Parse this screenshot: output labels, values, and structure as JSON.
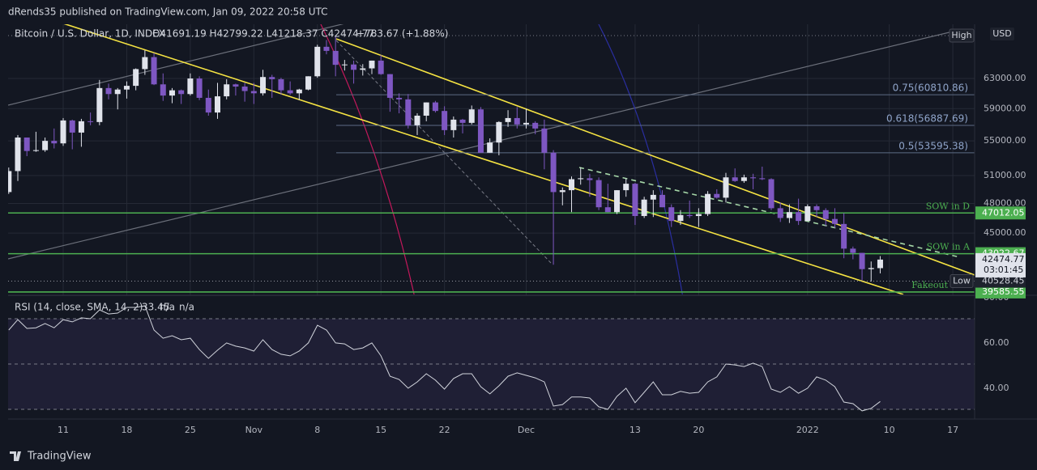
{
  "header": "dRends35 published on TradingView.com, Jan 09, 2022 20:58 UTC",
  "footer": "TradingView",
  "chart_data": {
    "type": "candlestick",
    "legend": {
      "name": "Bitcoin / U.S. Dollar, 1D, INDEX",
      "values": "O41691.19 H42799.22 L41218.37 C42474.77",
      "change": "+783.67 (+1.88%)"
    },
    "currency": "USD",
    "up_color": "#e0e3eb",
    "down_color": "#7e57c2",
    "log_scale": true,
    "grid": true,
    "xlim": [
      -0.07,
      106.4
    ],
    "xticks": [
      {
        "value": 6,
        "label": "11"
      },
      {
        "value": 13,
        "label": "18"
      },
      {
        "value": 20,
        "label": "25"
      },
      {
        "value": 27,
        "label": "Nov"
      },
      {
        "value": 34,
        "label": "8"
      },
      {
        "value": 41,
        "label": "15"
      },
      {
        "value": 48,
        "label": "22"
      },
      {
        "value": 57,
        "label": "Dec"
      },
      {
        "value": 69,
        "label": "13"
      },
      {
        "value": 76,
        "label": "20"
      },
      {
        "value": 88,
        "label": "2022"
      },
      {
        "value": 97,
        "label": "10"
      },
      {
        "value": 104,
        "label": "17"
      }
    ],
    "ylim": [
      39370,
      70890
    ],
    "yticks": [
      {
        "value": 45000,
        "label": "45000.00"
      },
      {
        "value": 48000,
        "label": "48000.00"
      },
      {
        "value": 51000,
        "label": "51000.00"
      },
      {
        "value": 55000,
        "label": "55000.00"
      },
      {
        "value": 59000,
        "label": "59000.00"
      },
      {
        "value": 63000,
        "label": "63000.00"
      }
    ],
    "ohlc": [
      [
        49200,
        51900,
        49000,
        51500
      ],
      [
        51500,
        55700,
        50400,
        55400
      ],
      [
        55400,
        55400,
        53200,
        53800
      ],
      [
        53800,
        56100,
        53700,
        53900
      ],
      [
        53900,
        55400,
        53700,
        55000
      ],
      [
        55000,
        56500,
        54100,
        54700
      ],
      [
        54700,
        57800,
        54400,
        57500
      ],
      [
        57500,
        57600,
        54000,
        56000
      ],
      [
        56000,
        57700,
        54300,
        57400
      ],
      [
        57400,
        58500,
        56900,
        57300
      ],
      [
        57300,
        62800,
        56900,
        61700
      ],
      [
        61700,
        62300,
        60200,
        60900
      ],
      [
        60900,
        61700,
        58900,
        61500
      ],
      [
        61500,
        62600,
        60300,
        62000
      ],
      [
        62000,
        64400,
        61400,
        64300
      ],
      [
        64300,
        67000,
        63500,
        66000
      ],
      [
        66000,
        66600,
        62100,
        62200
      ],
      [
        62200,
        63700,
        60000,
        60700
      ],
      [
        60700,
        61700,
        59700,
        61400
      ],
      [
        61400,
        61500,
        59600,
        60900
      ],
      [
        60900,
        63700,
        60700,
        63000
      ],
      [
        63000,
        63300,
        60100,
        60400
      ],
      [
        60400,
        61500,
        58100,
        58500
      ],
      [
        58500,
        62400,
        57700,
        60600
      ],
      [
        60600,
        62900,
        60200,
        62200
      ],
      [
        62200,
        62300,
        60700,
        61900
      ],
      [
        61900,
        62400,
        59900,
        61300
      ],
      [
        61300,
        62400,
        59600,
        61000
      ],
      [
        61000,
        64200,
        60700,
        63200
      ],
      [
        63200,
        63500,
        60400,
        62900
      ],
      [
        62900,
        63100,
        60800,
        61400
      ],
      [
        61400,
        62600,
        60800,
        61000
      ],
      [
        61000,
        61600,
        60100,
        61500
      ],
      [
        61500,
        63300,
        61400,
        63300
      ],
      [
        63300,
        67800,
        63100,
        67500
      ],
      [
        67500,
        68500,
        66400,
        66900
      ],
      [
        66900,
        69000,
        63300,
        64900
      ],
      [
        64900,
        65600,
        64100,
        64950
      ],
      [
        64950,
        65500,
        62300,
        64200
      ],
      [
        64200,
        65000,
        63400,
        64400
      ],
      [
        64400,
        65500,
        63600,
        65500
      ],
      [
        65500,
        66300,
        63500,
        63600
      ],
      [
        63600,
        63600,
        58600,
        60400
      ],
      [
        60400,
        61000,
        58400,
        60200
      ],
      [
        60200,
        60900,
        56500,
        56900
      ],
      [
        56900,
        58400,
        55700,
        58100
      ],
      [
        58100,
        59800,
        57400,
        59800
      ],
      [
        59800,
        60000,
        58500,
        58700
      ],
      [
        58700,
        59300,
        55700,
        56300
      ],
      [
        56300,
        58000,
        55400,
        57600
      ],
      [
        57600,
        57700,
        55900,
        57200
      ],
      [
        57200,
        59400,
        57000,
        58900
      ],
      [
        58900,
        59200,
        53600,
        53600
      ],
      [
        53600,
        55300,
        53600,
        54800
      ],
      [
        54800,
        57400,
        53300,
        57300
      ],
      [
        57300,
        58800,
        56700,
        57800
      ],
      [
        57800,
        59200,
        56500,
        57000
      ],
      [
        57000,
        59000,
        56500,
        57200
      ],
      [
        57200,
        57400,
        55800,
        56500
      ],
      [
        56500,
        57600,
        51700,
        53600
      ],
      [
        53600,
        53900,
        42000,
        49200
      ],
      [
        49200,
        49700,
        47800,
        49400
      ],
      [
        49400,
        50900,
        47100,
        50600
      ],
      [
        50600,
        51900,
        50000,
        50700
      ],
      [
        50700,
        51200,
        48700,
        50500
      ],
      [
        50500,
        50800,
        47300,
        47600
      ],
      [
        47600,
        50100,
        47100,
        47100
      ],
      [
        47100,
        49400,
        46900,
        49400
      ],
      [
        49400,
        50700,
        48700,
        50100
      ],
      [
        50100,
        50200,
        45800,
        46700
      ],
      [
        46700,
        48700,
        46500,
        48400
      ],
      [
        48400,
        49400,
        46600,
        48900
      ],
      [
        48900,
        49400,
        47600,
        47600
      ],
      [
        47600,
        47900,
        45600,
        46200
      ],
      [
        46200,
        47300,
        45800,
        46800
      ],
      [
        46800,
        48300,
        46500,
        46700
      ],
      [
        46700,
        47500,
        45600,
        46900
      ],
      [
        46900,
        49300,
        46700,
        49000
      ],
      [
        49000,
        49500,
        48500,
        48600
      ],
      [
        48600,
        51300,
        48100,
        50800
      ],
      [
        50800,
        51800,
        50300,
        50400
      ],
      [
        50400,
        51100,
        50200,
        50800
      ],
      [
        50800,
        51200,
        49500,
        50700
      ],
      [
        50700,
        52000,
        50500,
        50600
      ],
      [
        50600,
        50700,
        47300,
        47500
      ],
      [
        47500,
        48100,
        46100,
        46500
      ],
      [
        46500,
        47900,
        46000,
        47100
      ],
      [
        47100,
        48500,
        45800,
        46200
      ],
      [
        46200,
        47900,
        46200,
        47700
      ],
      [
        47700,
        47900,
        46600,
        47300
      ],
      [
        47300,
        47500,
        45700,
        46400
      ],
      [
        46400,
        47500,
        45500,
        45900
      ],
      [
        45900,
        47000,
        42600,
        43500
      ],
      [
        43500,
        43700,
        42500,
        43100
      ],
      [
        43100,
        43100,
        40600,
        41600
      ],
      [
        41600,
        42300,
        40500,
        41700
      ],
      [
        41691.19,
        42799.22,
        41218.37,
        42474.77
      ]
    ],
    "countdown": "03:01:45",
    "high_label": "High",
    "low": {
      "label": "Low",
      "value": 40528.45
    },
    "fib_levels": [
      {
        "label": "0.75(60810.86)",
        "value": 60810.86
      },
      {
        "label": "0.618(56887.69)",
        "value": 56887.69
      },
      {
        "label": "0.5(53595.38)",
        "value": 53595.38
      }
    ],
    "price_lines": [
      {
        "name": "SOW in D",
        "value": 47012.05
      },
      {
        "name": "SOW in A",
        "value": 43022.67
      },
      {
        "name": "Fakeout",
        "value": 39585.55
      }
    ],
    "line_color": "#4caf50",
    "rsi": {
      "title": "RSI (14, close, SMA, 14, 2)",
      "last": "33.45",
      "na1": "n/a",
      "na2": "n/a",
      "color": "#d1d4dc",
      "ylim": [
        25.7,
        80
      ],
      "yticks": [
        {
          "value": 40,
          "label": "40.00"
        },
        {
          "value": 60,
          "label": "60.00"
        },
        {
          "value": 80,
          "label": "80.00"
        }
      ],
      "bands": [
        70,
        50,
        30
      ],
      "values": [
        65,
        69.6,
        65.7,
        66,
        67.9,
        66,
        69.6,
        68.6,
        70.4,
        70,
        73.9,
        72.1,
        72.5,
        75,
        75,
        75.7,
        65,
        61.4,
        62.5,
        60.7,
        61.4,
        56.4,
        52.5,
        56.1,
        59.3,
        57.9,
        57.1,
        55.7,
        60.7,
        56.4,
        54.3,
        53.6,
        55.7,
        59.3,
        67.1,
        65,
        59.3,
        58.9,
        56.4,
        57.1,
        59.3,
        53.6,
        44.6,
        43.2,
        39.3,
        42.1,
        45.7,
        42.9,
        38.9,
        43.6,
        45.7,
        45.7,
        40,
        36.8,
        40.4,
        44.6,
        46.1,
        45,
        43.9,
        42.1,
        31.4,
        32.1,
        35.4,
        35.4,
        35,
        31.1,
        30,
        35.7,
        39.3,
        32.9,
        37.5,
        42.1,
        36.4,
        36.4,
        37.9,
        37.1,
        37.5,
        42.1,
        44.3,
        50,
        49.6,
        48.9,
        50.4,
        48.9,
        38.9,
        37.5,
        40,
        37.1,
        39.3,
        44.3,
        42.9,
        40,
        33.2,
        32.5,
        29.3,
        30.4,
        33.45
      ]
    }
  }
}
